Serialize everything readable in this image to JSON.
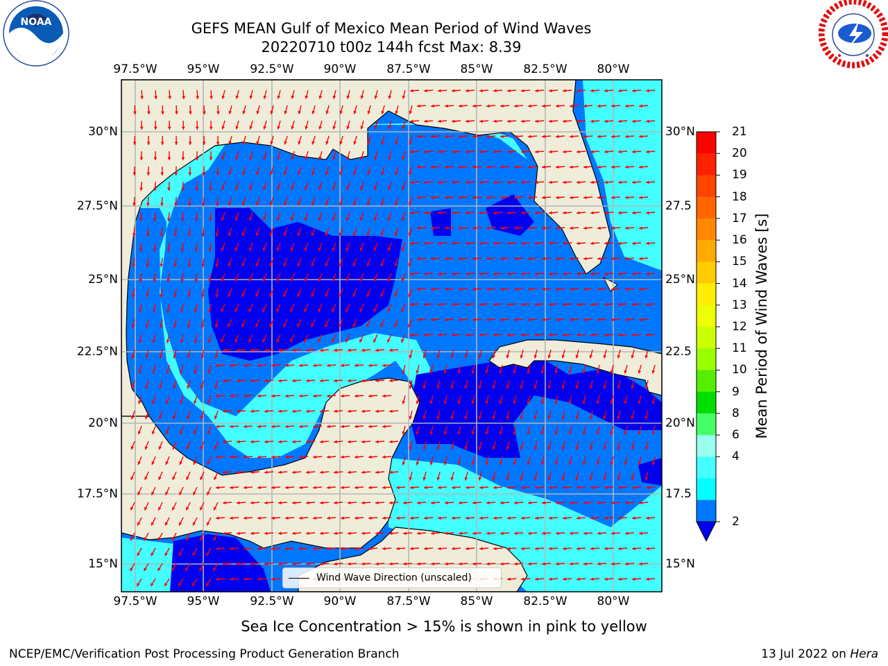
{
  "title_line1": "GEFS MEAN Gulf of Mexico Mean Period of Wind Waves",
  "title_line2": "20220710 t00z 144h fcst   Max: 8.39",
  "lon_ticks": [
    "97.5°W",
    "95°W",
    "92.5°W",
    "90°W",
    "87.5°W",
    "85°W",
    "82.5°W",
    "80°W"
  ],
  "lat_ticks": [
    "30°N",
    "27.5°N",
    "25°N",
    "22.5°N",
    "20°N",
    "17.5°N",
    "15°N"
  ],
  "lat_ticks_right": [
    "30°N",
    "27.5",
    "25°N",
    "22.5",
    "20°N",
    "17.5",
    "15°N"
  ],
  "colorbar": {
    "title": "Mean Period of Wind Waves [s]",
    "labels": [
      "21",
      "20",
      "19",
      "18",
      "17",
      "16",
      "15",
      "14",
      "13",
      "12",
      "11",
      "10",
      "9",
      "8",
      "6",
      "4",
      "2"
    ],
    "colors": [
      "#ff0000",
      "#ff2200",
      "#ff4400",
      "#ff6600",
      "#ff8800",
      "#ffaa00",
      "#ffcc00",
      "#ffee00",
      "#eeff00",
      "#ccff00",
      "#99ff00",
      "#55ee00",
      "#00dd00",
      "#44ff66",
      "#99ffee",
      "#44ffff",
      "#00ffff",
      "#0077ff"
    ],
    "extend_color": "#0000ee"
  },
  "legend_label": "Wind Wave Direction (unscaled)",
  "footer_note": "Sea Ice Concentration > 15% is shown in pink to yellow",
  "credit": "NCEP/EMC/Verification Post Processing Product Generation Branch",
  "date_text": "13 Jul 2022 on ",
  "date_host": "Hera",
  "noaa_logo_text": "NOAA",
  "colors": {
    "land": "#efedda",
    "water_mid": "#0077ff",
    "water_low": "#0000ee",
    "water_cyan": "#00ffff",
    "water_cyan2": "#44ffff",
    "arrow": "#ff0000"
  }
}
